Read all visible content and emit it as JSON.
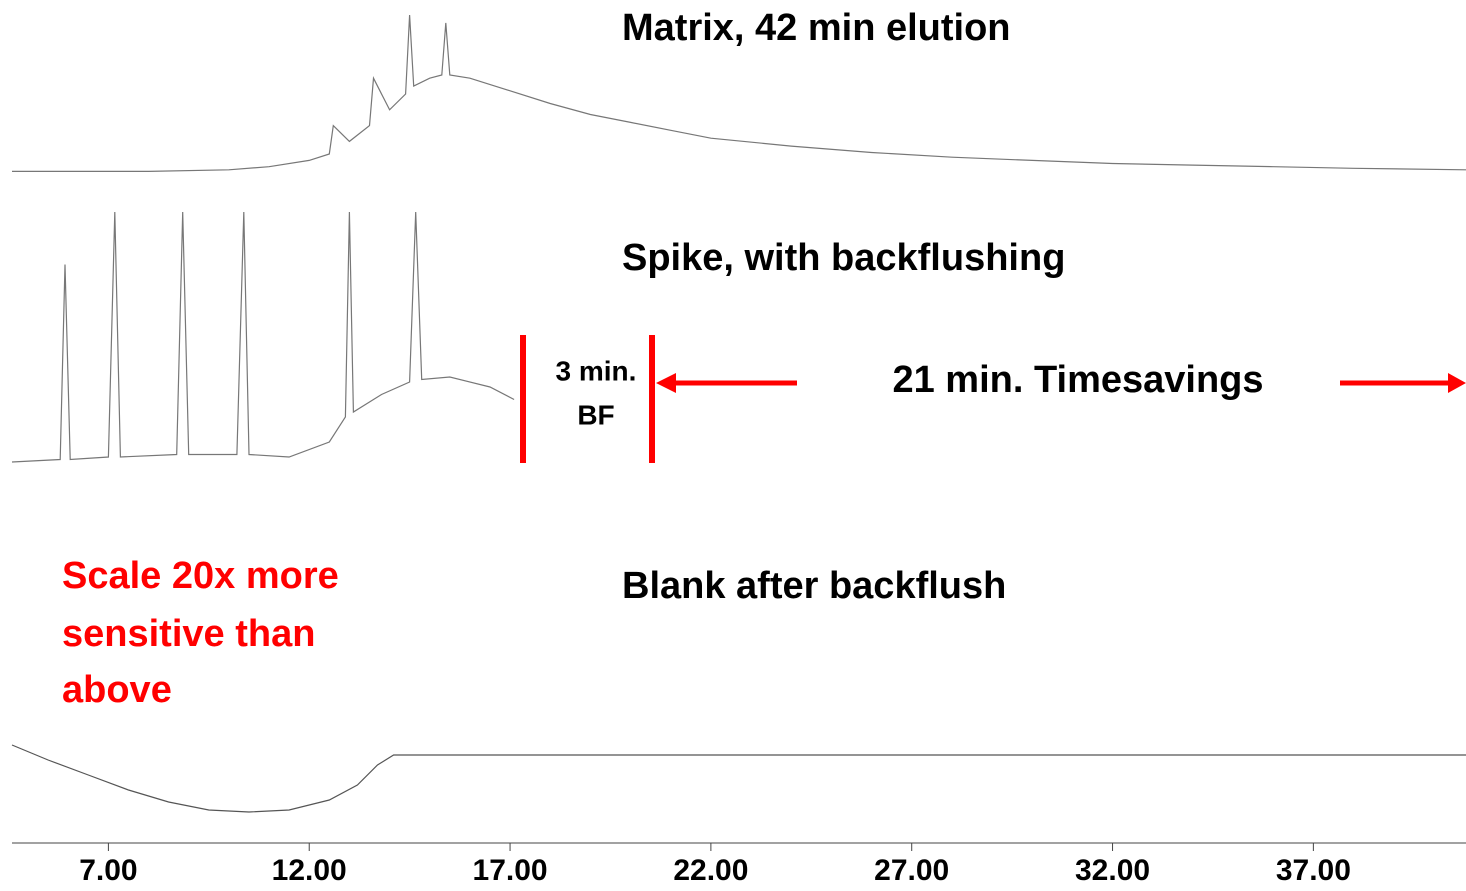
{
  "chart_data": [
    {
      "type": "line",
      "title": "Matrix, 42 min elution",
      "xlim": [
        4.6,
        40.8
      ],
      "ylim": [
        0,
        100
      ],
      "x": [
        4.6,
        6,
        8,
        10,
        11,
        12,
        12.5,
        12.6,
        13,
        13.5,
        13.6,
        14,
        14.4,
        14.5,
        14.6,
        15,
        15.3,
        15.4,
        15.5,
        16,
        17,
        18,
        19,
        20,
        21,
        22,
        24,
        26,
        28,
        30,
        32,
        34,
        36,
        38,
        40.8
      ],
      "values": [
        1,
        1,
        1,
        2,
        4,
        8,
        12,
        30,
        20,
        30,
        60,
        40,
        50,
        100,
        55,
        60,
        62,
        95,
        62,
        60,
        52,
        44,
        37,
        32,
        27,
        22,
        17,
        13,
        10,
        8,
        6,
        5,
        4,
        3,
        2
      ],
      "color": "#777777"
    },
    {
      "type": "line",
      "title": "Spike, with backflushing",
      "xlim": [
        4.6,
        40.8
      ],
      "ylim": [
        0,
        100
      ],
      "x": [
        4.6,
        5.8,
        5.92,
        6.05,
        7.0,
        7.16,
        7.3,
        8.7,
        8.85,
        9.0,
        10.2,
        10.37,
        10.5,
        11.5,
        12.5,
        12.9,
        13.0,
        13.1,
        13.8,
        14.5,
        14.65,
        14.8,
        15.5,
        16.5,
        17.1
      ],
      "values": [
        0,
        1,
        79,
        1,
        2,
        100,
        2,
        3,
        100,
        3,
        3,
        100,
        3,
        2,
        8,
        18,
        100,
        20,
        27,
        32,
        100,
        33,
        34,
        30,
        25
      ],
      "color": "#777777"
    },
    {
      "type": "line",
      "title": "Blank after backflush",
      "xlim": [
        4.6,
        40.8
      ],
      "ylim": [
        0,
        100
      ],
      "x": [
        4.6,
        5.5,
        6.5,
        7.5,
        8.5,
        9.5,
        10.5,
        11.5,
        12.5,
        13.2,
        13.7,
        14.1,
        40.8
      ],
      "values": [
        85,
        70,
        55,
        40,
        28,
        20,
        18,
        20,
        30,
        45,
        65,
        75,
        75
      ],
      "color": "#555555",
      "xticks": [
        {
          "value": 7,
          "label": "7.00"
        },
        {
          "value": 12,
          "label": "12.00"
        },
        {
          "value": 17,
          "label": "17.00"
        },
        {
          "value": 22,
          "label": "22.00"
        },
        {
          "value": 27,
          "label": "27.00"
        },
        {
          "value": 32,
          "label": "32.00"
        },
        {
          "value": 37,
          "label": "37.00"
        }
      ]
    }
  ],
  "annotations": {
    "bf_time": "3 min.",
    "bf_label": "BF",
    "savings": "21 min. Timesavings",
    "scale_note": [
      "Scale 20x more",
      "sensitive than",
      "above"
    ]
  }
}
